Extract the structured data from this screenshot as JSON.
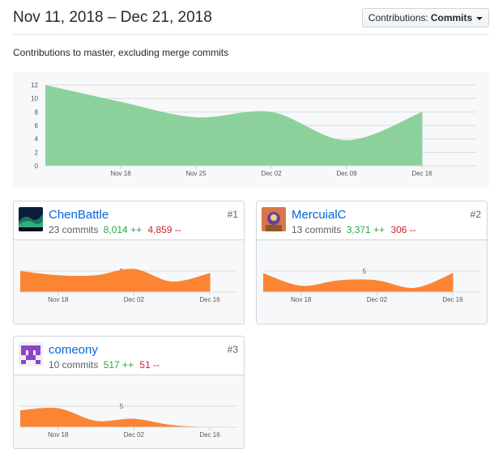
{
  "header": {
    "range_title": "Nov 11, 2018 – Dec 21, 2018",
    "button_prefix": "Contributions:",
    "button_value": "Commits"
  },
  "subtitle": "Contributions to master, excluding merge commits",
  "chart_data": [
    {
      "type": "area",
      "title": "",
      "x": [
        "Nov 11",
        "Nov 18",
        "Nov 25",
        "Dec 02",
        "Dec 09",
        "Dec 16"
      ],
      "x_tick_labels": [
        "Nov 18",
        "Nov 25",
        "Dec 02",
        "Dec 09",
        "Dec 16"
      ],
      "y_ticks": [
        "12",
        "10",
        "8",
        "6",
        "4",
        "2",
        "0"
      ],
      "ylim": [
        0,
        12
      ],
      "values": [
        12,
        9.5,
        7.2,
        8,
        3.8,
        8
      ],
      "grid": true,
      "color": "#8cd19c"
    },
    {
      "type": "area",
      "contributor": "ChenBattle",
      "x": [
        "Nov 11",
        "Nov 18",
        "Nov 25",
        "Dec 02",
        "Dec 09",
        "Dec 16"
      ],
      "x_tick_labels": [
        "Nov 18",
        "Dec 02",
        "Dec 16"
      ],
      "y_tick_label": "5",
      "ylim": [
        0,
        10
      ],
      "values": [
        5,
        4,
        4,
        5.5,
        2.5,
        4.5
      ],
      "grid": true,
      "color": "#fb8532"
    },
    {
      "type": "area",
      "contributor": "MercuialC",
      "x": [
        "Nov 11",
        "Nov 18",
        "Nov 25",
        "Dec 02",
        "Dec 09",
        "Dec 16"
      ],
      "x_tick_labels": [
        "Nov 18",
        "Dec 02",
        "Dec 16"
      ],
      "y_tick_label": "5",
      "ylim": [
        0,
        10
      ],
      "values": [
        4.5,
        1.5,
        2.8,
        2.8,
        1,
        4.5
      ],
      "grid": true,
      "color": "#fb8532"
    },
    {
      "type": "area",
      "contributor": "comeony",
      "x": [
        "Nov 11",
        "Nov 18",
        "Nov 25",
        "Dec 02",
        "Dec 09",
        "Dec 16"
      ],
      "x_tick_labels": [
        "Nov 18",
        "Dec 02",
        "Dec 16"
      ],
      "y_tick_label": "5",
      "ylim": [
        0,
        10
      ],
      "values": [
        4,
        4.5,
        1.5,
        2,
        0.5,
        0
      ],
      "grid": true,
      "color": "#fb8532"
    }
  ],
  "contributors": [
    {
      "name": "ChenBattle",
      "commits": "23 commits",
      "additions": "8,014 ++",
      "deletions": "4,859 --",
      "rank": "#1",
      "avatar": "aurora-avatar"
    },
    {
      "name": "MercuialC",
      "commits": "13 commits",
      "additions": "3,371 ++",
      "deletions": "306 --",
      "rank": "#2",
      "avatar": "character-avatar"
    },
    {
      "name": "comeony",
      "commits": "10 commits",
      "additions": "517 ++",
      "deletions": "51 --",
      "rank": "#3",
      "avatar": "identicon-avatar"
    }
  ]
}
